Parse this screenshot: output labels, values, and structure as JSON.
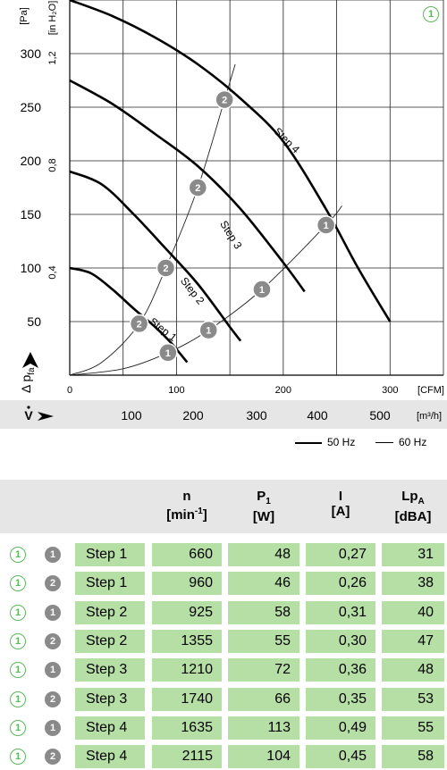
{
  "chart_data": {
    "type": "line",
    "badge": "1",
    "y_unit": "[Pa]",
    "y2_unit": "[in H₂O]",
    "y_ticks": [
      "50",
      "100",
      "150",
      "200",
      "250",
      "300"
    ],
    "y2_ticks": [
      "0,4",
      "0,8",
      "1,2"
    ],
    "x_cfm_ticks": [
      "0",
      "100",
      "200",
      "300"
    ],
    "x_cfm_unit": "[CFM]",
    "x_m3h_ticks": [
      "100",
      "200",
      "300",
      "400",
      "500"
    ],
    "x_m3h_unit": "[m³/h]",
    "ylabel": "Δ p",
    "ylabel_sub": "fa",
    "xlabel": "V",
    "ylim": [
      0,
      350
    ],
    "xlim_cfm": [
      0,
      350
    ],
    "series": [
      {
        "name": "Step 1",
        "points": [
          [
            0,
            100
          ],
          [
            20,
            95
          ],
          [
            40,
            80
          ],
          [
            60,
            62
          ],
          [
            80,
            45
          ],
          [
            95,
            30
          ],
          [
            110,
            12
          ]
        ]
      },
      {
        "name": "Step 2",
        "points": [
          [
            0,
            190
          ],
          [
            30,
            178
          ],
          [
            60,
            150
          ],
          [
            90,
            118
          ],
          [
            120,
            85
          ],
          [
            150,
            45
          ],
          [
            160,
            32
          ]
        ]
      },
      {
        "name": "Step 3",
        "points": [
          [
            0,
            275
          ],
          [
            40,
            253
          ],
          [
            80,
            225
          ],
          [
            120,
            195
          ],
          [
            160,
            155
          ],
          [
            200,
            105
          ],
          [
            220,
            78
          ]
        ]
      },
      {
        "name": "Step 4",
        "points": [
          [
            0,
            350
          ],
          [
            40,
            335
          ],
          [
            80,
            315
          ],
          [
            120,
            290
          ],
          [
            160,
            258
          ],
          [
            200,
            218
          ],
          [
            240,
            155
          ],
          [
            270,
            100
          ],
          [
            300,
            50
          ]
        ]
      }
    ],
    "system_curves": [
      {
        "name": "1",
        "points": [
          [
            0,
            0
          ],
          [
            50,
            6
          ],
          [
            92,
            21
          ],
          [
            130,
            42
          ],
          [
            180,
            80
          ],
          [
            240,
            140
          ],
          [
            255,
            158
          ]
        ]
      },
      {
        "name": "2",
        "points": [
          [
            0,
            0
          ],
          [
            30,
            12
          ],
          [
            65,
            48
          ],
          [
            90,
            100
          ],
          [
            120,
            175
          ],
          [
            145,
            257
          ],
          [
            155,
            290
          ]
        ]
      }
    ],
    "markers": [
      {
        "label": "1",
        "x": 92,
        "y": 21
      },
      {
        "label": "1",
        "x": 130,
        "y": 42
      },
      {
        "label": "1",
        "x": 180,
        "y": 80
      },
      {
        "label": "1",
        "x": 240,
        "y": 140
      },
      {
        "label": "2",
        "x": 65,
        "y": 48
      },
      {
        "label": "2",
        "x": 90,
        "y": 100
      },
      {
        "label": "2",
        "x": 120,
        "y": 175
      },
      {
        "label": "2",
        "x": 145,
        "y": 257
      }
    ],
    "curve_labels": [
      "Step 1",
      "Step 2",
      "Step 3",
      "Step 4"
    ],
    "legend": [
      "50 Hz",
      "60 Hz"
    ]
  },
  "table": {
    "headers": [
      {
        "line1": "n",
        "line2": "[min",
        "sup": "-1",
        "line2_end": "]"
      },
      {
        "line1": "P",
        "sub": "1",
        "line2": "[W]"
      },
      {
        "line1": "I",
        "line2": "[A]"
      },
      {
        "line1": "Lp",
        "sub": "A",
        "line2": "[dBA]"
      }
    ],
    "rows": [
      {
        "curve": "1",
        "op": "1",
        "step": "Step 1",
        "n": "660",
        "p": "48",
        "i": "0,27",
        "lp": "31"
      },
      {
        "curve": "1",
        "op": "2",
        "step": "Step 1",
        "n": "960",
        "p": "46",
        "i": "0,26",
        "lp": "38"
      },
      {
        "curve": "1",
        "op": "1",
        "step": "Step 2",
        "n": "925",
        "p": "58",
        "i": "0,31",
        "lp": "40"
      },
      {
        "curve": "1",
        "op": "2",
        "step": "Step 2",
        "n": "1355",
        "p": "55",
        "i": "0,30",
        "lp": "47"
      },
      {
        "curve": "1",
        "op": "1",
        "step": "Step 3",
        "n": "1210",
        "p": "72",
        "i": "0,36",
        "lp": "48"
      },
      {
        "curve": "1",
        "op": "2",
        "step": "Step 3",
        "n": "1740",
        "p": "66",
        "i": "0,35",
        "lp": "53"
      },
      {
        "curve": "1",
        "op": "1",
        "step": "Step 4",
        "n": "1635",
        "p": "113",
        "i": "0,49",
        "lp": "55"
      },
      {
        "curve": "1",
        "op": "2",
        "step": "Step 4",
        "n": "2115",
        "p": "104",
        "i": "0,45",
        "lp": "58"
      }
    ]
  },
  "colors": {
    "cell_green": "#b6dfa6",
    "badge_green": "#5cb85c",
    "marker_gray": "#8a8a8a",
    "header_gray": "#e6e6e6",
    "bottom_gray": "#e6e6e6"
  }
}
